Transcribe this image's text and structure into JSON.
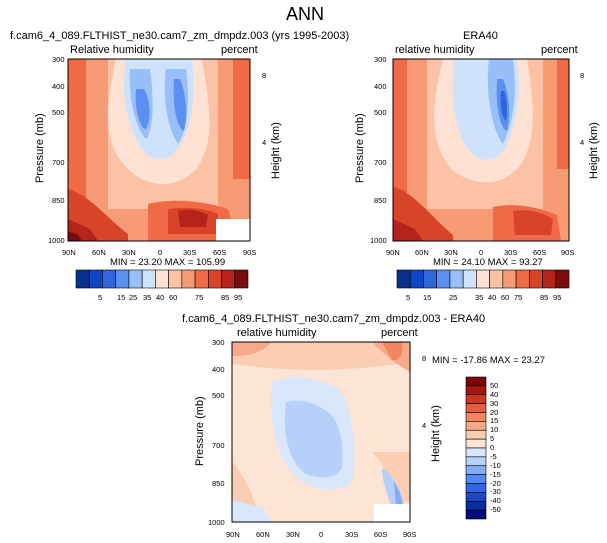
{
  "page": {
    "title": "ANN"
  },
  "colors": {
    "cbar_top": [
      "#08308f",
      "#1045c8",
      "#2e66e0",
      "#5b8ff0",
      "#98bff8",
      "#cfe2fb",
      "#fde2d3",
      "#fbc2a5",
      "#f79b74",
      "#ef6a45",
      "#d94428",
      "#b5231a",
      "#7a0c0c"
    ],
    "cbar_diff": [
      "#000f78",
      "#0a2aa0",
      "#1c45c8",
      "#2f64e6",
      "#5088f5",
      "#80acf8",
      "#b6d0fa",
      "#d8e7fc",
      "#fde4d4",
      "#fbcdb1",
      "#f8a987",
      "#f38561",
      "#e45f3e",
      "#c9391f",
      "#a5170c",
      "#7e0505"
    ]
  },
  "chart_data": [
    {
      "type": "heatmap",
      "title": "f.cam6_4_089.FLTHIST_ne30.cam7_zm_dmpdz.003 (yrs 1995-2003)",
      "left_label": "Relative humidity",
      "right_label": "percent",
      "ylabel": "Pressure (mb)",
      "y2label": "Height (km)",
      "xticks": [
        "90N",
        "60N",
        "30N",
        "0",
        "30S",
        "60S",
        "90S"
      ],
      "yticks": [
        "300",
        "400",
        "500",
        "700",
        "850",
        "1000"
      ],
      "y2ticks": [
        "8",
        "4"
      ],
      "min_max": "MIN =  23.20   MAX = 105.99",
      "colorbar": [
        "5",
        "15",
        "25",
        "35",
        "40",
        "60",
        "75",
        "85",
        "95"
      ]
    },
    {
      "type": "heatmap",
      "title": "ERA40",
      "left_label": "relative humidity",
      "right_label": "percent",
      "ylabel": "Pressure (mb)",
      "y2label": "Height (km)",
      "xticks": [
        "90N",
        "60N",
        "30N",
        "0",
        "30S",
        "60S",
        "90S"
      ],
      "yticks": [
        "300",
        "400",
        "500",
        "700",
        "850",
        "1000"
      ],
      "y2ticks": [
        "8",
        "4"
      ],
      "min_max": "MIN =  24.10   MAX = 93.27",
      "colorbar": [
        "5",
        "15",
        "25",
        "35",
        "40",
        "60",
        "75",
        "85",
        "95"
      ]
    },
    {
      "type": "heatmap",
      "title": "f.cam6_4_089.FLTHIST_ne30.cam7_zm_dmpdz.003 - ERA40",
      "left_label": "relative humidity",
      "right_label": "percent",
      "ylabel": "Pressure (mb)",
      "y2label": "Height (km)",
      "xticks": [
        "90N",
        "60N",
        "30N",
        "0",
        "30S",
        "60S",
        "90S"
      ],
      "yticks": [
        "300",
        "400",
        "500",
        "700",
        "850",
        "1000"
      ],
      "y2ticks": [
        "8",
        "4"
      ],
      "min_max": "MIN = -17.86   MAX = 23.27",
      "colorbar": [
        "50",
        "40",
        "30",
        "20",
        "15",
        "10",
        "5",
        "0",
        "-5",
        "-10",
        "-15",
        "-20",
        "-30",
        "-40",
        "-50"
      ]
    }
  ]
}
